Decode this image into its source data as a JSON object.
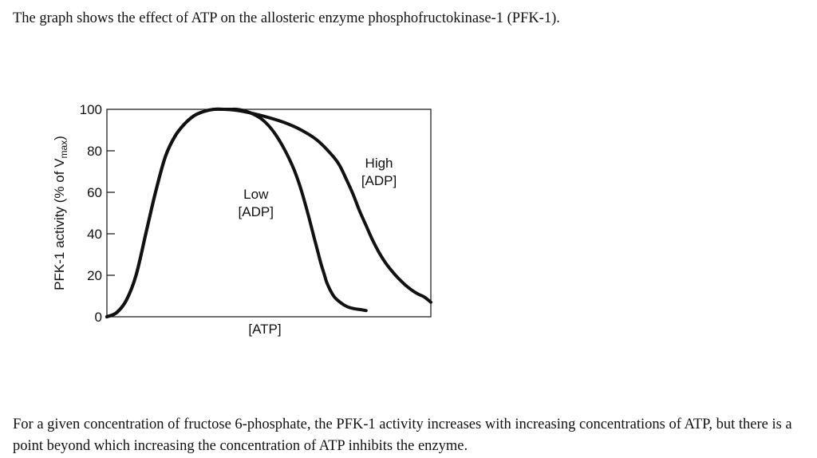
{
  "intro_text": "The graph shows the effect of ATP on the allosteric enzyme phosphofructokinase-1 (PFK-1).",
  "outro_text": "For a given concentration of fructose 6-phosphate, the PFK-1 activity increases with increasing concentrations of ATP, but there is a point beyond which increasing the concentration of ATP inhibits the enzyme.",
  "chart_data": {
    "type": "line",
    "title": "",
    "xlabel": "[ATP]",
    "ylabel": {
      "main": "PFK-1 activity (% of V",
      "sub": "max",
      "close": ")"
    },
    "xlim": [
      0,
      100
    ],
    "ylim": [
      0,
      100
    ],
    "yticks": [
      "0",
      "20",
      "40",
      "60",
      "80",
      "100"
    ],
    "grid": false,
    "legend": "none",
    "line_color": "#111111",
    "series": [
      {
        "name": "Low [ADP]",
        "label_lines": [
          "Low",
          "[ADP]"
        ],
        "label_at": [
          46,
          57
        ],
        "x": [
          0,
          3,
          6,
          9,
          12,
          15,
          18,
          21,
          24,
          27,
          30,
          33,
          36,
          38,
          40,
          42,
          44,
          46,
          48,
          50,
          52,
          54,
          56,
          58,
          60,
          62,
          63,
          64,
          65,
          66,
          67,
          68,
          70,
          72,
          74,
          76,
          78,
          80
        ],
        "y": [
          0,
          2,
          8,
          20,
          40,
          60,
          77,
          87,
          93,
          97,
          99,
          100,
          100,
          100,
          100,
          99.5,
          98.5,
          97,
          95,
          92,
          88,
          83,
          77,
          70,
          61,
          50,
          44,
          38,
          32,
          26,
          21,
          16,
          10,
          7,
          5,
          4,
          3.5,
          3
        ]
      },
      {
        "name": "High [ADP]",
        "label_lines": [
          "High",
          "[ADP]"
        ],
        "label_at": [
          84,
          72
        ],
        "x": [
          0,
          3,
          6,
          9,
          12,
          15,
          18,
          21,
          24,
          27,
          30,
          33,
          36,
          40,
          45,
          50,
          55,
          60,
          65,
          70,
          72,
          74,
          76,
          78,
          80,
          82,
          84,
          86,
          88,
          90,
          92,
          94,
          96,
          98,
          100
        ],
        "y": [
          0,
          2,
          8,
          20,
          40,
          60,
          77,
          87,
          93,
          97,
          99,
          100,
          100,
          99.5,
          98,
          96,
          93.5,
          90,
          85,
          77,
          72.5,
          66,
          59,
          51,
          44,
          37,
          31,
          26,
          22,
          18.5,
          15.5,
          13,
          11,
          9.5,
          7
        ]
      }
    ]
  }
}
